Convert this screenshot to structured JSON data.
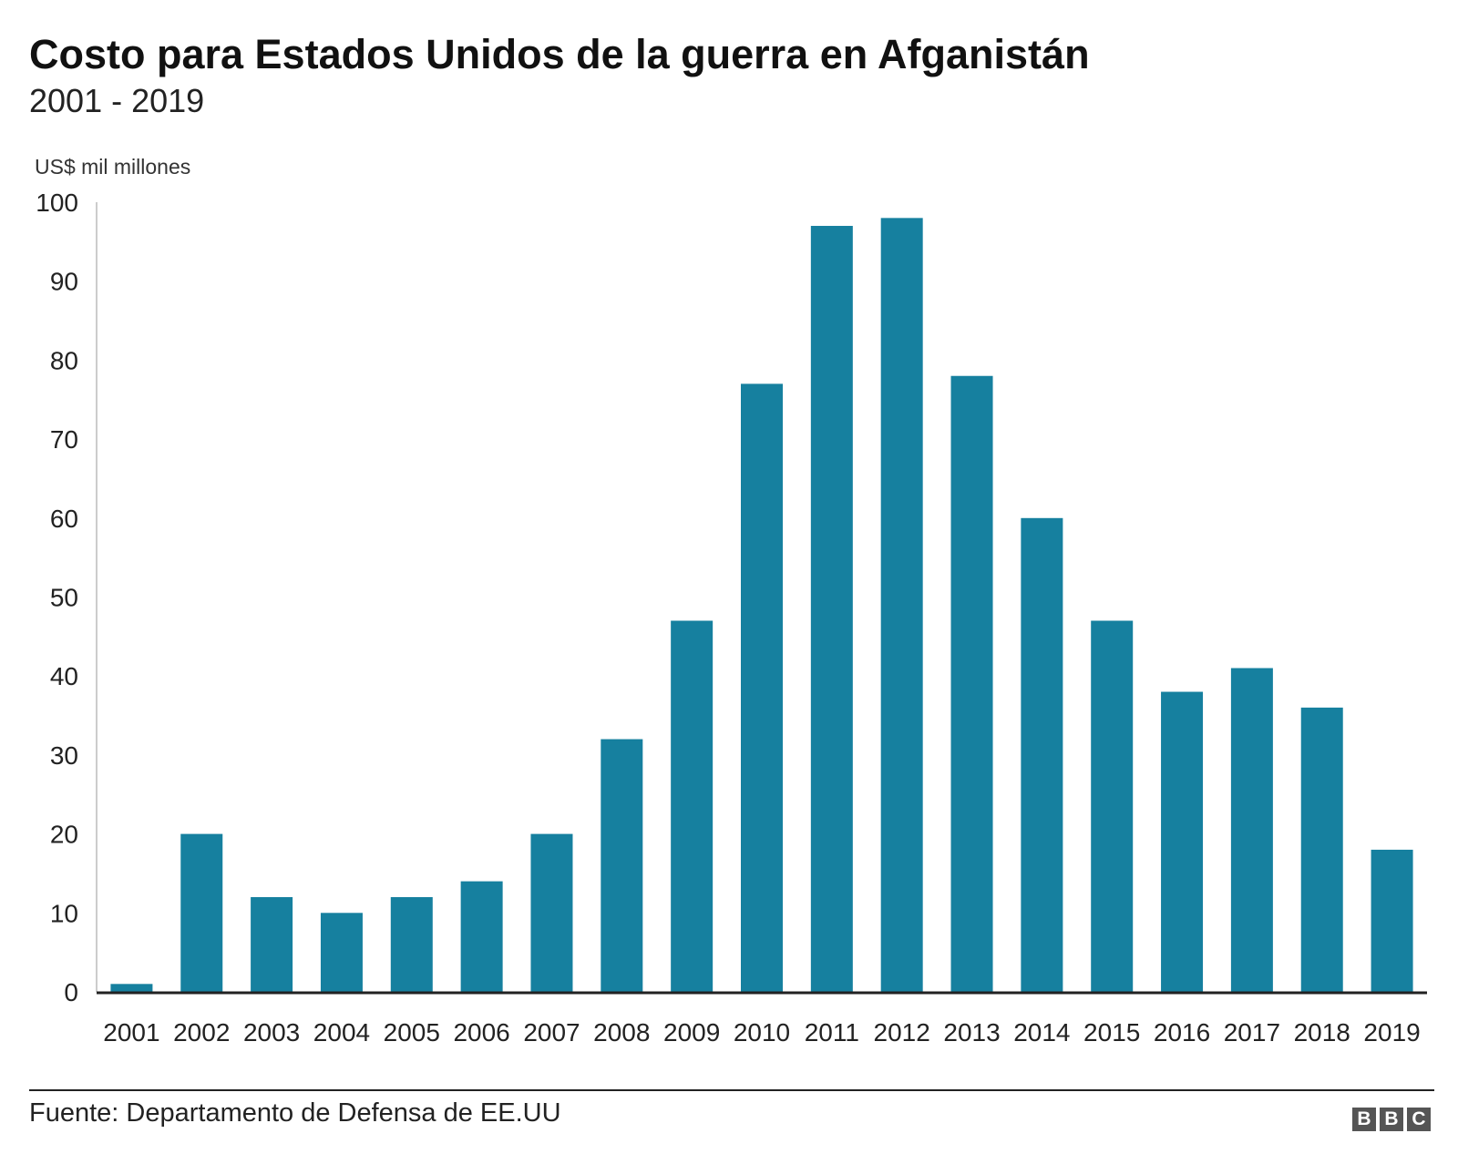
{
  "chart_data": {
    "type": "bar",
    "title": "Costo para Estados Unidos de la guerra en Afganistán",
    "subtitle": "2001 - 2019",
    "ylabel": "US$ mil millones",
    "xlabel": "",
    "categories": [
      "2001",
      "2002",
      "2003",
      "2004",
      "2005",
      "2006",
      "2007",
      "2008",
      "2009",
      "2010",
      "2011",
      "2012",
      "2013",
      "2014",
      "2015",
      "2016",
      "2017",
      "2018",
      "2019"
    ],
    "values": [
      1,
      20,
      12,
      10,
      12,
      14,
      20,
      32,
      47,
      77,
      97,
      98,
      78,
      60,
      47,
      38,
      41,
      36,
      18
    ],
    "ylim": [
      0,
      100
    ],
    "yticks": [
      "0",
      "10",
      "20",
      "30",
      "40",
      "50",
      "60",
      "70",
      "80",
      "90",
      "100"
    ],
    "grid": false,
    "bar_color": "#16809f"
  },
  "footer": {
    "source": "Fuente: Departamento de Defensa de EE.UU",
    "logo": [
      "B",
      "B",
      "C"
    ]
  }
}
